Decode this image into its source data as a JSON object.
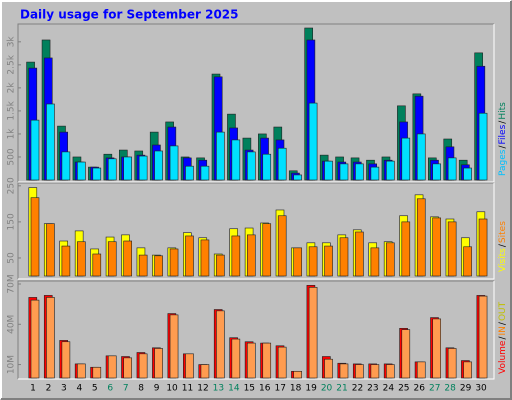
{
  "chart_data": {
    "type": "bar",
    "title": "Daily usage for September 2025",
    "categories": [
      "1",
      "2",
      "3",
      "4",
      "5",
      "6",
      "7",
      "8",
      "9",
      "10",
      "11",
      "12",
      "13",
      "14",
      "15",
      "16",
      "17",
      "18",
      "19",
      "20",
      "21",
      "22",
      "23",
      "24",
      "25",
      "26",
      "27",
      "28",
      "29",
      "30"
    ],
    "category_colors": [
      "#000000",
      "#000000",
      "#000000",
      "#000000",
      "#000000",
      "#00805c",
      "#00805c",
      "#000000",
      "#000000",
      "#000000",
      "#000000",
      "#000000",
      "#00805c",
      "#00805c",
      "#000000",
      "#000000",
      "#000000",
      "#000000",
      "#000000",
      "#00805c",
      "#00805c",
      "#000000",
      "#000000",
      "#000000",
      "#000000",
      "#000000",
      "#00805c",
      "#00805c",
      "#000000",
      "#000000"
    ],
    "panels": [
      {
        "ylim": [
          0,
          3300
        ],
        "yticks": [
          500,
          {
            "value": 1000,
            "label": "1k"
          },
          {
            "value": 1500,
            "label": "1.5k"
          },
          {
            "value": 2000,
            "label": "2k"
          },
          {
            "value": 2500,
            "label": "2.5k"
          },
          {
            "value": 3000,
            "label": "3k"
          }
        ],
        "legend": [
          {
            "text": "Pages",
            "color": "#00c0ff"
          },
          {
            "text": "/",
            "color": "#000000"
          },
          {
            "text": "Files",
            "color": "#0000ff"
          },
          {
            "text": "/",
            "color": "#000000"
          },
          {
            "text": "Hits",
            "color": "#00805c"
          }
        ],
        "series": [
          {
            "color": "#00805c",
            "values": [
              2560,
              3040,
              1170,
              500,
              280,
              560,
              650,
              630,
              1040,
              1260,
              500,
              480,
              2300,
              1430,
              910,
              1000,
              1150,
              200,
              3300,
              540,
              500,
              480,
              430,
              500,
              1610,
              1870,
              480,
              890,
              430,
              2760
            ]
          },
          {
            "color": "#0000ff",
            "values": [
              2430,
              2650,
              1040,
              390,
              280,
              480,
              500,
              540,
              760,
              1150,
              480,
              430,
              2240,
              1130,
              650,
              910,
              870,
              150,
              3040,
              410,
              390,
              390,
              350,
              430,
              1260,
              1820,
              430,
              720,
              330,
              2470
            ]
          },
          {
            "color": "#00e0ff",
            "values": [
              1300,
              1650,
              610,
              390,
              260,
              460,
              500,
              520,
              630,
              740,
              300,
              300,
              1040,
              870,
              610,
              560,
              690,
              110,
              1670,
              410,
              350,
              350,
              280,
              410,
              910,
              1000,
              350,
              480,
              260,
              1450
            ]
          }
        ]
      },
      {
        "ylim": [
          0,
          255
        ],
        "yticks": [
          50,
          150,
          250
        ],
        "legend": [
          {
            "text": "Visits",
            "color": "#ffff00"
          },
          {
            "text": "/",
            "color": "#000000"
          },
          {
            "text": "Sites",
            "color": "#ff8000"
          }
        ],
        "series": [
          {
            "color": "#ffff00",
            "values": [
              245,
              145,
              97,
              125,
              75,
              108,
              114,
              78,
              58,
              78,
              120,
              106,
              61,
              131,
              133,
              147,
              183,
              78,
              92,
              92,
              114,
              128,
              92,
              95,
              167,
              225,
              164,
              158,
              106,
              178
            ]
          },
          {
            "color": "#ff8000",
            "values": [
              217,
              145,
              83,
              95,
              61,
              95,
              97,
              58,
              56,
              75,
              111,
              100,
              58,
              111,
              114,
              145,
              167,
              78,
              81,
              83,
              106,
              122,
              78,
              92,
              150,
              214,
              161,
              150,
              81,
              158
            ]
          }
        ]
      },
      {
        "ylim": [
          0,
          70
        ],
        "yticks": [
          {
            "value": 10,
            "label": "10M"
          },
          {
            "value": 40,
            "label": "40M"
          },
          {
            "value": 70,
            "label": "70M"
          }
        ],
        "legend": [
          {
            "text": "Volume",
            "color": "#ff0000"
          },
          {
            "text": "/",
            "color": "#000000"
          },
          {
            "text": "IN",
            "color": "#ff8000"
          },
          {
            "text": "/",
            "color": "#000000"
          },
          {
            "text": "OUT",
            "color": "#c0c000"
          }
        ],
        "series": [
          {
            "color": "#ff0000",
            "values": [
              60,
              61.5,
              28,
              10.5,
              8,
              16.5,
              16,
              19,
              22.5,
              48,
              18,
              10,
              51,
              30,
              27,
              26,
              24,
              5,
              69,
              16,
              11,
              10.5,
              10.5,
              10.5,
              37,
              12,
              45,
              22.5,
              13,
              61.5
            ]
          },
          {
            "color": "#ff9c50",
            "values": [
              58,
              60,
              27,
              10.5,
              8,
              16.5,
              15,
              18,
              22,
              47,
              18,
              10,
              50,
              29,
              26,
              26,
              23,
              5,
              67.5,
              14,
              10.5,
              10,
              10,
              10,
              36,
              12,
              44,
              22,
              12,
              61
            ]
          }
        ]
      }
    ]
  }
}
